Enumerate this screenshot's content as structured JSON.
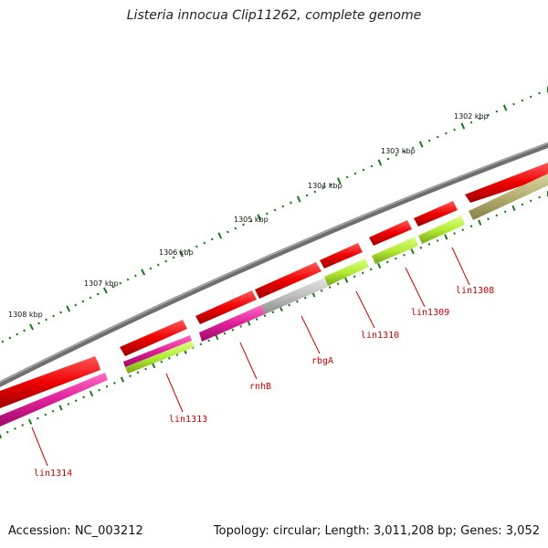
{
  "title": "Listeria innocua Clip11262, complete genome",
  "footer": {
    "accession": "Accession: NC_003212",
    "summary": "Topology: circular; Length: 3,011,208 bp; Genes: 3,052"
  },
  "ruler": {
    "kbp_labels": [
      "1302 kbp",
      "1303 kbp",
      "1304 kbp",
      "1305 kbp",
      "1306 kbp",
      "1307 kbp",
      "1308 kbp"
    ]
  },
  "genes": [
    {
      "name": "lin1308"
    },
    {
      "name": "lin1309"
    },
    {
      "name": "lin1310"
    },
    {
      "name": "rbgA"
    },
    {
      "name": "rnhB"
    },
    {
      "name": "lin1313"
    },
    {
      "name": "lin1314"
    }
  ],
  "colors": {
    "cds": "#e80000",
    "backbone": "#7a7a7a",
    "tick": "#1a7a1a",
    "label": "#cc0000",
    "magenta": "#e0209a",
    "lime": "#b8f03a",
    "gray": "#bdbdbd",
    "olive": "#b5b070"
  }
}
